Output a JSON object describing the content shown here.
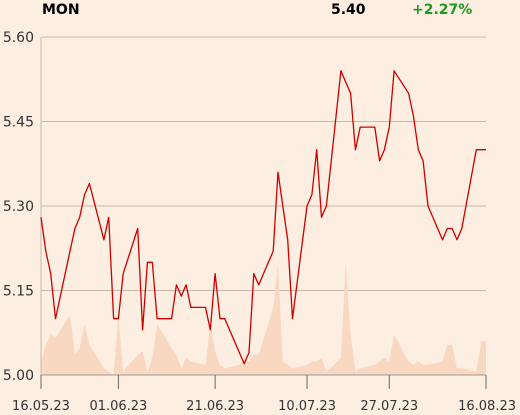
{
  "header": {
    "ticker": "MON",
    "price": "5.40",
    "change": "+2.27%",
    "change_color": "#1f9a1f"
  },
  "colors": {
    "background": "#fdeee2",
    "line": "#cc0000",
    "volume_area": "#f9d8c2",
    "gridline": "#c9b8ab",
    "axis": "#999999"
  },
  "chart_data": {
    "type": "line",
    "title": "",
    "xlabel": "",
    "ylabel": "",
    "ylim": [
      5.0,
      5.6
    ],
    "grid": true,
    "y_ticks": [
      5.0,
      5.15,
      5.3,
      5.45,
      5.6
    ],
    "y_tick_labels": [
      "5.00",
      "5.15",
      "5.30",
      "5.45",
      "5.60"
    ],
    "x_ticks": [
      "2023-05-16",
      "2023-06-01",
      "2023-06-21",
      "2023-07-10",
      "2023-07-27",
      "2023-08-16"
    ],
    "x_tick_labels": [
      "16.05.23",
      "01.06.23",
      "21.06.23",
      "10.07.23",
      "27.07.23",
      "16.08.23"
    ],
    "series": [
      {
        "kind": "price-line",
        "x": [
          "2023-05-16",
          "2023-05-17",
          "2023-05-18",
          "2023-05-19",
          "2023-05-22",
          "2023-05-23",
          "2023-05-24",
          "2023-05-25",
          "2023-05-26",
          "2023-05-29",
          "2023-05-30",
          "2023-05-31",
          "2023-06-01",
          "2023-06-02",
          "2023-06-05",
          "2023-06-06",
          "2023-06-07",
          "2023-06-08",
          "2023-06-09",
          "2023-06-12",
          "2023-06-13",
          "2023-06-14",
          "2023-06-15",
          "2023-06-16",
          "2023-06-19",
          "2023-06-20",
          "2023-06-21",
          "2023-06-22",
          "2023-06-23",
          "2023-06-26",
          "2023-06-27",
          "2023-06-28",
          "2023-06-29",
          "2023-06-30",
          "2023-07-03",
          "2023-07-04",
          "2023-07-05",
          "2023-07-06",
          "2023-07-07",
          "2023-07-10",
          "2023-07-11",
          "2023-07-12",
          "2023-07-13",
          "2023-07-14",
          "2023-07-17",
          "2023-07-18",
          "2023-07-19",
          "2023-07-20",
          "2023-07-21",
          "2023-07-24",
          "2023-07-25",
          "2023-07-26",
          "2023-07-27",
          "2023-07-28",
          "2023-07-31",
          "2023-08-01",
          "2023-08-02",
          "2023-08-03",
          "2023-08-04",
          "2023-08-07",
          "2023-08-08",
          "2023-08-09",
          "2023-08-10",
          "2023-08-11",
          "2023-08-14",
          "2023-08-15",
          "2023-08-16"
        ],
        "values": [
          5.28,
          5.22,
          5.18,
          5.1,
          5.22,
          5.26,
          5.28,
          5.32,
          5.34,
          5.24,
          5.28,
          5.1,
          5.1,
          5.18,
          5.26,
          5.08,
          5.2,
          5.2,
          5.1,
          5.1,
          5.16,
          5.14,
          5.16,
          5.12,
          5.12,
          5.08,
          5.18,
          5.1,
          5.1,
          5.04,
          5.02,
          5.04,
          5.18,
          5.16,
          5.22,
          5.36,
          5.3,
          5.24,
          5.1,
          5.3,
          5.32,
          5.4,
          5.28,
          5.3,
          5.54,
          5.52,
          5.5,
          5.4,
          5.44,
          5.44,
          5.38,
          5.4,
          5.44,
          5.54,
          5.5,
          5.46,
          5.4,
          5.38,
          5.3,
          5.24,
          5.26,
          5.26,
          5.24,
          5.26,
          5.4,
          5.4,
          5.4
        ]
      },
      {
        "kind": "volume-area",
        "values": [
          0.04,
          0.09,
          0.12,
          0.11,
          0.18,
          0.06,
          0.08,
          0.15,
          0.09,
          0.02,
          0.01,
          0.0,
          0.18,
          0.01,
          0.06,
          0.07,
          0.01,
          0.05,
          0.15,
          0.08,
          0.06,
          0.02,
          0.05,
          0.04,
          0.03,
          0.15,
          0.07,
          0.03,
          0.02,
          0.03,
          0.05,
          0.04,
          0.06,
          0.06,
          0.2,
          0.33,
          0.04,
          0.03,
          0.02,
          0.03,
          0.04,
          0.04,
          0.05,
          0.01,
          0.05,
          0.33,
          0.12,
          0.01,
          0.02,
          0.03,
          0.04,
          0.05,
          0.04,
          0.12,
          0.04,
          0.03,
          0.04,
          0.03,
          0.03,
          0.04,
          0.09,
          0.09,
          0.02,
          0.02,
          0.01,
          0.1,
          0.1
        ]
      }
    ]
  }
}
